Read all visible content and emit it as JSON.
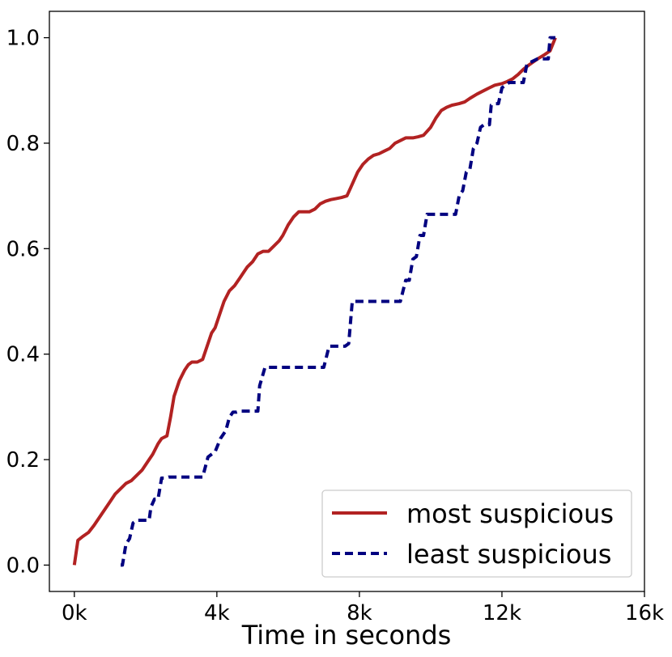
{
  "chart_data": {
    "type": "line",
    "title": "",
    "xlabel": "Time in seconds",
    "ylabel": "",
    "xlim": [
      -700,
      16000
    ],
    "ylim": [
      -0.05,
      1.05
    ],
    "x_ticks": [
      0,
      4000,
      8000,
      12000,
      16000
    ],
    "x_tick_labels": [
      "0k",
      "4k",
      "8k",
      "12k",
      "16k"
    ],
    "y_ticks": [
      0.0,
      0.2,
      0.4,
      0.6,
      0.8,
      1.0
    ],
    "y_tick_labels": [
      "0.0",
      "0.2",
      "0.4",
      "0.6",
      "0.8",
      "1.0"
    ],
    "grid": false,
    "legend_position": "bottom-right",
    "series": [
      {
        "name": "most suspicious",
        "color": "#b22222",
        "style": "solid",
        "x": [
          0,
          100,
          250,
          400,
          550,
          700,
          850,
          1000,
          1150,
          1300,
          1450,
          1600,
          1750,
          1900,
          2050,
          2200,
          2350,
          2450,
          2600,
          2700,
          2800,
          2950,
          3100,
          3200,
          3300,
          3450,
          3600,
          3750,
          3850,
          3950,
          4100,
          4200,
          4350,
          4500,
          4650,
          4750,
          4850,
          5000,
          5150,
          5300,
          5450,
          5600,
          5750,
          5850,
          6000,
          6150,
          6300,
          6450,
          6600,
          6750,
          6900,
          7050,
          7200,
          7350,
          7500,
          7650,
          7750,
          7850,
          7950,
          8100,
          8250,
          8400,
          8550,
          8700,
          8850,
          9000,
          9150,
          9300,
          9500,
          9650,
          9800,
          10000,
          10150,
          10300,
          10450,
          10600,
          10800,
          10950,
          11100,
          11300,
          11500,
          11650,
          11800,
          12000,
          12150,
          12300,
          12450,
          12600,
          12750,
          12900,
          13050,
          13200,
          13350,
          13500
        ],
        "y": [
          0.0,
          0.047,
          0.055,
          0.062,
          0.075,
          0.09,
          0.105,
          0.12,
          0.135,
          0.145,
          0.155,
          0.16,
          0.17,
          0.18,
          0.195,
          0.21,
          0.23,
          0.24,
          0.245,
          0.28,
          0.32,
          0.35,
          0.37,
          0.38,
          0.385,
          0.385,
          0.39,
          0.42,
          0.44,
          0.45,
          0.48,
          0.5,
          0.52,
          0.53,
          0.545,
          0.555,
          0.565,
          0.575,
          0.59,
          0.595,
          0.595,
          0.605,
          0.615,
          0.625,
          0.645,
          0.66,
          0.67,
          0.67,
          0.67,
          0.675,
          0.685,
          0.69,
          0.693,
          0.695,
          0.697,
          0.7,
          0.715,
          0.73,
          0.745,
          0.76,
          0.77,
          0.777,
          0.78,
          0.785,
          0.79,
          0.8,
          0.805,
          0.81,
          0.81,
          0.812,
          0.815,
          0.83,
          0.848,
          0.862,
          0.868,
          0.872,
          0.875,
          0.878,
          0.885,
          0.893,
          0.9,
          0.905,
          0.91,
          0.913,
          0.917,
          0.922,
          0.93,
          0.94,
          0.948,
          0.955,
          0.962,
          0.968,
          0.975,
          1.0
        ]
      },
      {
        "name": "least suspicious",
        "color": "#000080",
        "style": "dashed",
        "x": [
          1300,
          1350,
          1450,
          1550,
          1650,
          1750,
          1850,
          1950,
          2100,
          2150,
          2250,
          2350,
          2450,
          2550,
          2650,
          3600,
          3750,
          3850,
          3950,
          4100,
          4250,
          4350,
          4450,
          4550,
          4650,
          5150,
          5200,
          5350,
          5450,
          6950,
          7000,
          7150,
          7250,
          7600,
          7700,
          7800,
          7900,
          9100,
          9150,
          9300,
          9400,
          9500,
          9600,
          9700,
          9800,
          9900,
          10000,
          10700,
          10800,
          10900,
          11000,
          11100,
          11200,
          11300,
          11400,
          11500,
          11650,
          11700,
          11800,
          11900,
          12000,
          12200,
          12300,
          12600,
          12700,
          13000,
          13100,
          13300,
          13350,
          13500
        ],
        "y": [
          0.0,
          0.0,
          0.04,
          0.05,
          0.08,
          0.085,
          0.085,
          0.085,
          0.085,
          0.11,
          0.125,
          0.125,
          0.165,
          0.165,
          0.167,
          0.167,
          0.205,
          0.21,
          0.215,
          0.24,
          0.255,
          0.28,
          0.29,
          0.29,
          0.292,
          0.292,
          0.34,
          0.375,
          0.375,
          0.375,
          0.375,
          0.415,
          0.415,
          0.415,
          0.42,
          0.5,
          0.5,
          0.5,
          0.5,
          0.54,
          0.54,
          0.58,
          0.585,
          0.625,
          0.625,
          0.665,
          0.665,
          0.665,
          0.7,
          0.71,
          0.745,
          0.75,
          0.79,
          0.8,
          0.83,
          0.835,
          0.835,
          0.872,
          0.875,
          0.875,
          0.905,
          0.915,
          0.915,
          0.915,
          0.95,
          0.96,
          0.96,
          0.96,
          1.0,
          1.0
        ]
      }
    ]
  }
}
